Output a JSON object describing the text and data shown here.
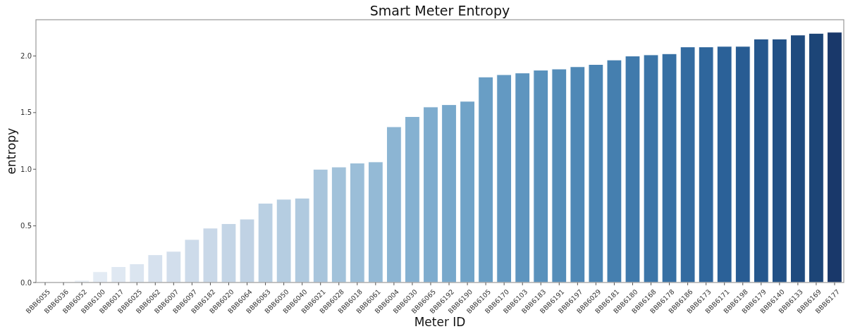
{
  "chart_data": {
    "type": "bar",
    "title": "Smart Meter Entropy",
    "xlabel": "Meter ID",
    "ylabel": "entropy",
    "categories": [
      "BBB6055",
      "BBB6036",
      "BBB6052",
      "BBB6100",
      "BBB6017",
      "BBB6025",
      "BBB6062",
      "BBB6007",
      "BBB6097",
      "BBB6182",
      "BBB6020",
      "BBB6064",
      "BBB6063",
      "BBB6050",
      "BBB6040",
      "BBB6021",
      "BBB6028",
      "BBB6018",
      "BBB6061",
      "BBB6004",
      "BBB6030",
      "BBB6065",
      "BBB6192",
      "BBB6190",
      "BBB6105",
      "BBB6170",
      "BBB6103",
      "BBB6183",
      "BBB6191",
      "BBB6197",
      "BBB6029",
      "BBB6181",
      "BBB6180",
      "BBB6168",
      "BBB6178",
      "BBB6186",
      "BBB6173",
      "BBB6171",
      "BBB6198",
      "BBB6179",
      "BBB6140",
      "BBB6133",
      "BBB6169",
      "BBB6177"
    ],
    "values": [
      0,
      0,
      0.02,
      0.095,
      0.14,
      0.165,
      0.245,
      0.275,
      0.38,
      0.48,
      0.52,
      0.56,
      0.7,
      0.735,
      0.745,
      1.0,
      1.02,
      1.055,
      1.065,
      1.375,
      1.465,
      1.55,
      1.57,
      1.6,
      1.815,
      1.835,
      1.85,
      1.875,
      1.885,
      1.905,
      1.925,
      1.965,
      2.0,
      2.01,
      2.02,
      2.08,
      2.08,
      2.085,
      2.085,
      2.15,
      2.15,
      2.185,
      2.2,
      2.21
    ],
    "colors": [
      "#f6f8fa",
      "#eff3f8",
      "#e9eff6",
      "#e3ebf4",
      "#dfe8f2",
      "#dbe5f0",
      "#d6e1ee",
      "#d2deec",
      "#cddbea",
      "#c9d8e8",
      "#c4d5e6",
      "#c0d2e4",
      "#bad0e3",
      "#b5cde1",
      "#b0cadf",
      "#a8c5dc",
      "#a2c2da",
      "#9bbed8",
      "#94bad6",
      "#8cb5d3",
      "#85b1d1",
      "#7eacce",
      "#77a8cb",
      "#70a3c8",
      "#699ec5",
      "#6399c2",
      "#5e95bf",
      "#5991bc",
      "#548db9",
      "#4f88b6",
      "#4a84b3",
      "#457faf",
      "#407aac",
      "#3b75a8",
      "#3770a4",
      "#336ba0",
      "#2f669c",
      "#2b6198",
      "#285c93",
      "#25578d",
      "#225186",
      "#1f4b7f",
      "#1c4577",
      "#19386a"
    ],
    "ylim": [
      0,
      2.32
    ],
    "yticks": [
      {
        "value": 0,
        "label": "0.0"
      },
      {
        "value": 0.5,
        "label": "0.5"
      },
      {
        "value": 1,
        "label": "1.0"
      },
      {
        "value": 1.5,
        "label": "1.5"
      },
      {
        "value": 2,
        "label": "2.0"
      }
    ]
  }
}
